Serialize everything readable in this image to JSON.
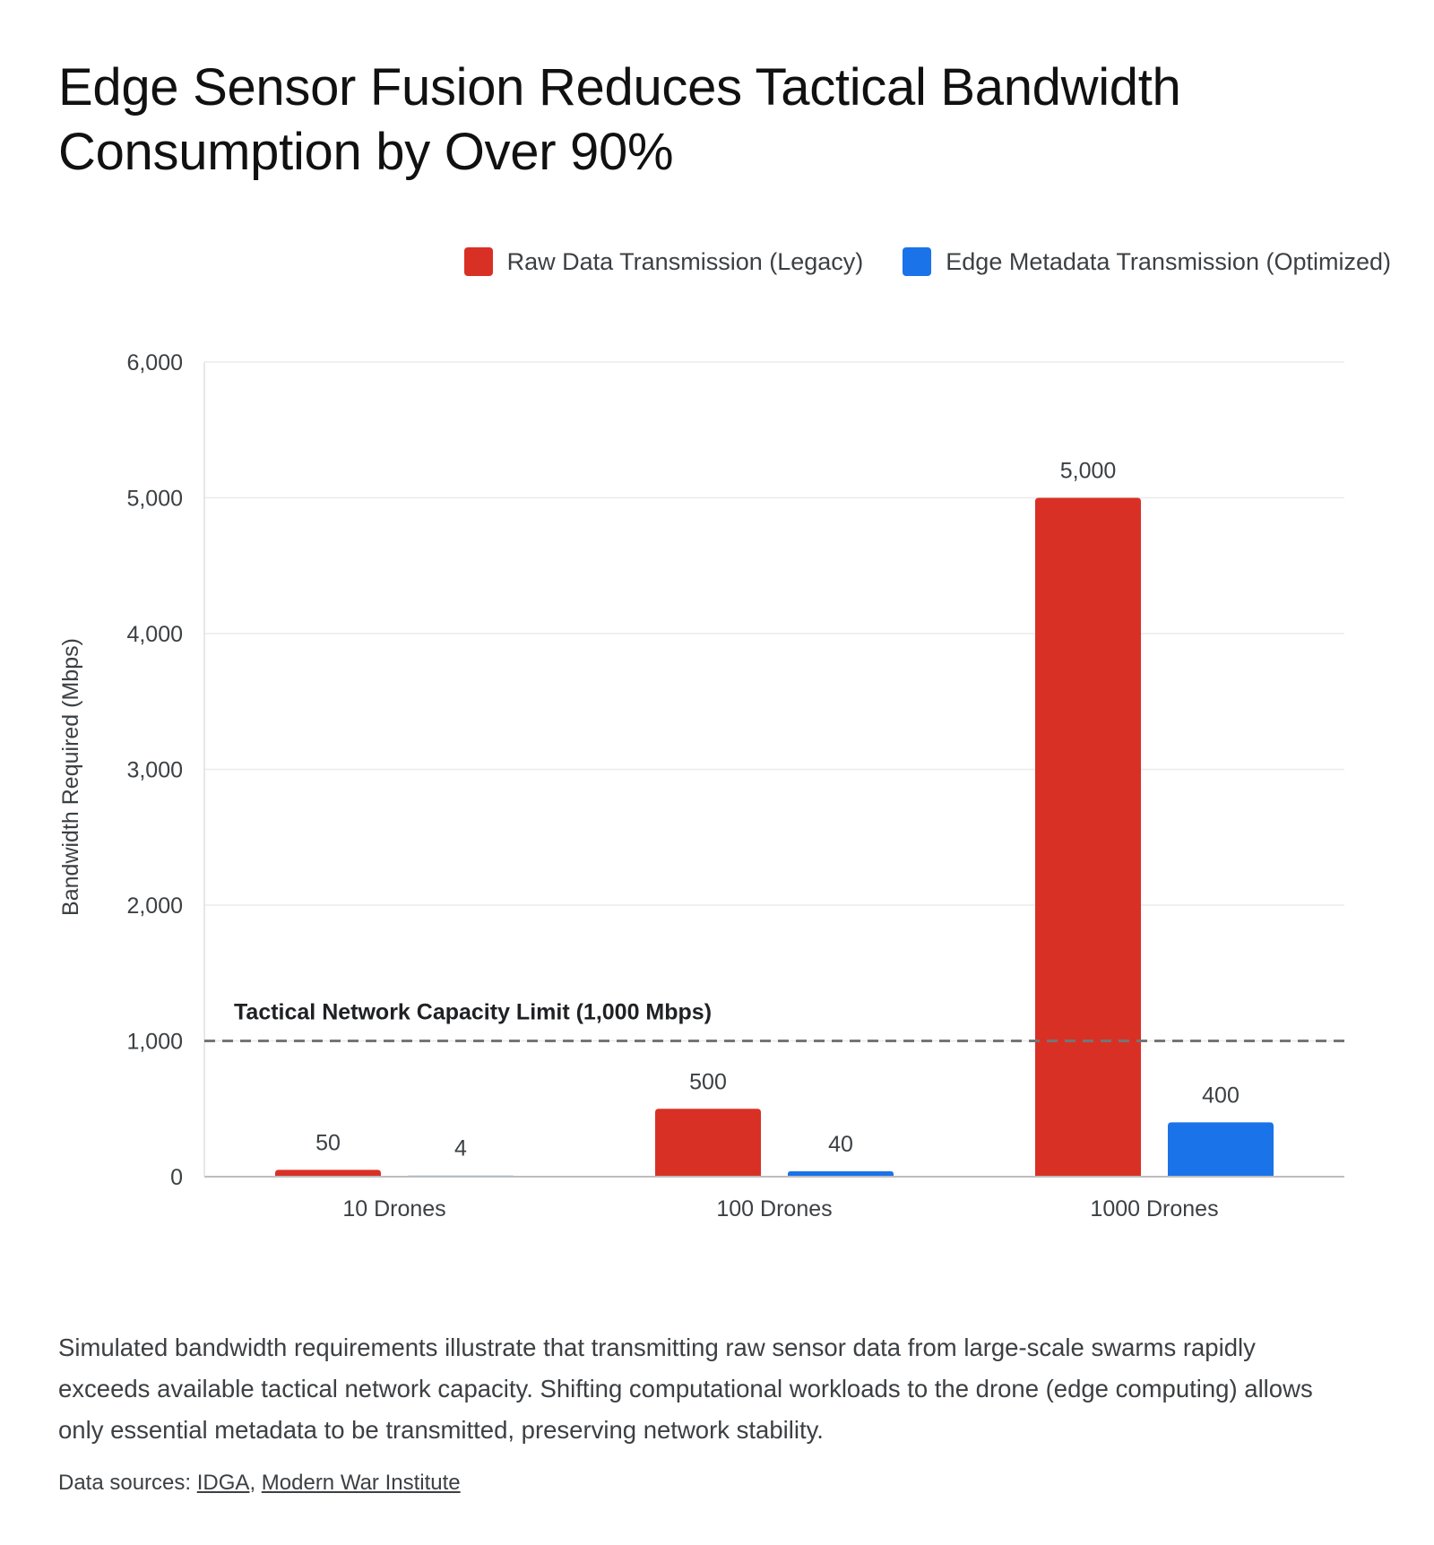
{
  "title": "Edge Sensor Fusion Reduces Tactical Bandwidth Consumption by Over 90%",
  "description": "Simulated bandwidth requirements illustrate that transmitting raw sensor data from large-scale swarms rapidly exceeds available tactical network capacity. Shifting computational workloads to the drone (edge computing) allows only essential metadata to be transmitted, preserving network stability.",
  "sources": {
    "label": "Data sources:",
    "separator": ",",
    "links": [
      "IDGA",
      "Modern War Institute"
    ]
  },
  "chart_data": {
    "type": "bar",
    "categories": [
      "10 Drones",
      "100 Drones",
      "1000 Drones"
    ],
    "series": [
      {
        "name": "Raw Data Transmission (Legacy)",
        "values": [
          50,
          500,
          5000
        ],
        "color": "#d93025"
      },
      {
        "name": "Edge Metadata Transmission (Optimized)",
        "values": [
          4,
          40,
          400
        ],
        "color": "#1a73e8"
      }
    ],
    "xlabel": "",
    "ylabel": "Bandwidth Required (Mbps)",
    "ylim": [
      0,
      6000
    ],
    "yticks": [
      0,
      1000,
      2000,
      3000,
      4000,
      5000,
      6000
    ],
    "ytick_labels": [
      "0",
      "1,000",
      "2,000",
      "3,000",
      "4,000",
      "5,000",
      "6,000"
    ],
    "data_labels": [
      [
        "50",
        "500",
        "5,000"
      ],
      [
        "4",
        "40",
        "400"
      ]
    ],
    "grid": true,
    "legend": "top-right",
    "reference_line": {
      "value": 1000,
      "label": "Tactical Network Capacity Limit (1,000 Mbps)",
      "style": "dashed",
      "color": "#757575"
    }
  }
}
